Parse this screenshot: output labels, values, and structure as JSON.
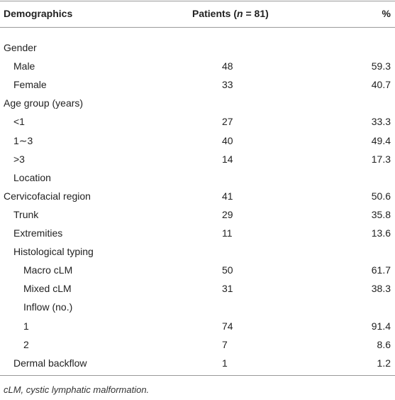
{
  "table": {
    "header": {
      "demographics": "Demographics",
      "patients": {
        "prefix": "Patients (",
        "italic": "n",
        "suffix": " = 81)"
      },
      "percent": "%"
    },
    "rows": [
      {
        "label": "Gender"
      },
      {
        "label": "Male",
        "patients": 48,
        "percent": 59.3
      },
      {
        "label": "Female",
        "patients": 33,
        "percent": 40.7
      },
      {
        "label": "Age group (years)"
      },
      {
        "label": "<1",
        "patients": 27,
        "percent": 33.3
      },
      {
        "label": "1∼3",
        "patients": 40,
        "percent": 49.4
      },
      {
        "label": ">3",
        "patients": 14,
        "percent": 17.3
      },
      {
        "label": "Location"
      },
      {
        "label": "Cervicofacial region",
        "patients": 41,
        "percent": 50.6
      },
      {
        "label": "Trunk",
        "patients": 29,
        "percent": 35.8
      },
      {
        "label": "Extremities",
        "patients": 11,
        "percent": 13.6
      },
      {
        "label": "Histological typing"
      },
      {
        "label": "Macro cLM",
        "patients": 50,
        "percent": 61.7
      },
      {
        "label": "Mixed cLM",
        "patients": 31,
        "percent": 38.3
      },
      {
        "label": "Inflow (no.)"
      },
      {
        "label": "1",
        "patients": 74,
        "percent": 91.4
      },
      {
        "label": "2",
        "patients": 7,
        "percent": 8.6
      },
      {
        "label": "Dermal backflow",
        "patients": 1,
        "percent": 1.2
      }
    ],
    "footnote": "cLM, cystic lymphatic malformation."
  }
}
